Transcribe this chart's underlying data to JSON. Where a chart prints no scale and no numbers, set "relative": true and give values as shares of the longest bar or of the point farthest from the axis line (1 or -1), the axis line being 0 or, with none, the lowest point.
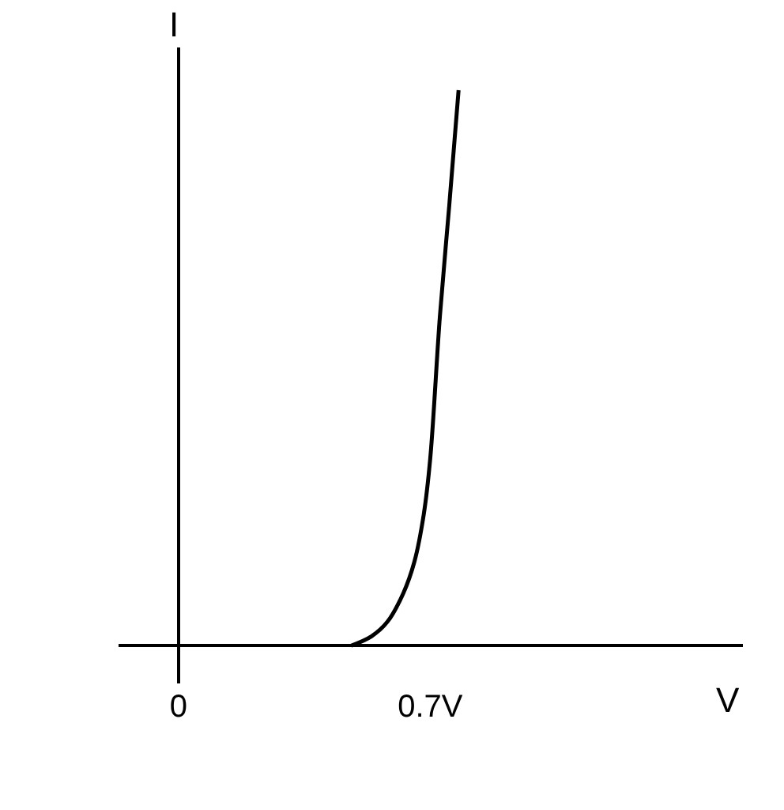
{
  "chart_data": {
    "type": "line",
    "xlabel": "V",
    "ylabel": "I",
    "relative": true,
    "x": [
      0.48,
      0.537,
      0.581,
      0.625,
      0.656,
      0.682,
      0.7,
      0.727,
      0.753,
      0.779
    ],
    "values": [
      0,
      0.017,
      0.043,
      0.094,
      0.151,
      0.236,
      0.336,
      0.593,
      0.792,
      1
    ],
    "color": "#000000",
    "xlim": [
      -0.167,
      1.57
    ],
    "xticks": [
      0,
      {
        "value": 0.7,
        "label": "0.7V"
      }
    ],
    "marker": "none",
    "line_style": "solid"
  }
}
